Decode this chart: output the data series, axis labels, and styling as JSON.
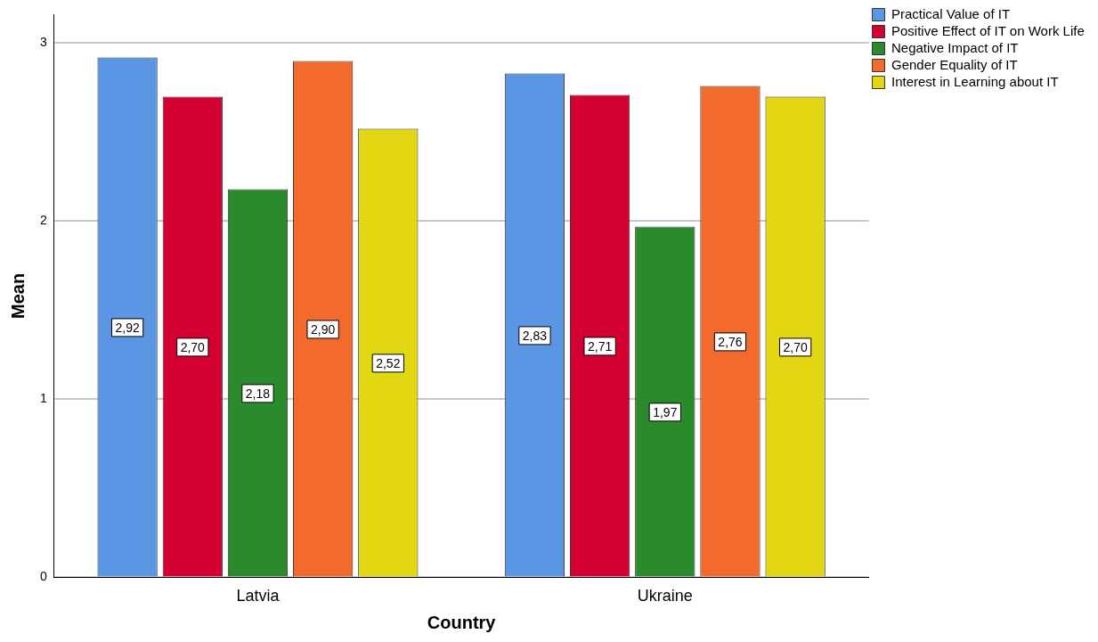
{
  "chart_data": {
    "type": "bar",
    "xlabel": "Country",
    "ylabel": "Mean",
    "categories": [
      "Latvia",
      "Ukraine"
    ],
    "series": [
      {
        "name": "Practical Value of IT",
        "color": "#5a96e3",
        "values": [
          2.92,
          2.83
        ],
        "value_labels": [
          "2,92",
          "2,83"
        ]
      },
      {
        "name": "Positive Effect of IT on Work Life",
        "color": "#d50032",
        "values": [
          2.7,
          2.71
        ],
        "value_labels": [
          "2,70",
          "2,71"
        ]
      },
      {
        "name": "Negative Impact of IT",
        "color": "#2b8a2b",
        "values": [
          2.18,
          1.97
        ],
        "value_labels": [
          "2,18",
          "1,97"
        ]
      },
      {
        "name": "Gender Equality of IT",
        "color": "#f26a2c",
        "values": [
          2.9,
          2.76
        ],
        "value_labels": [
          "2,90",
          "2,76"
        ]
      },
      {
        "name": "Interest in Learning about IT",
        "color": "#e2d712",
        "values": [
          2.52,
          2.7
        ],
        "value_labels": [
          "2,52",
          "2,70"
        ]
      }
    ],
    "ylim": [
      0,
      3.16
    ],
    "yticks": [
      0,
      1,
      2,
      3
    ],
    "grid": "y",
    "legend": "top right"
  }
}
